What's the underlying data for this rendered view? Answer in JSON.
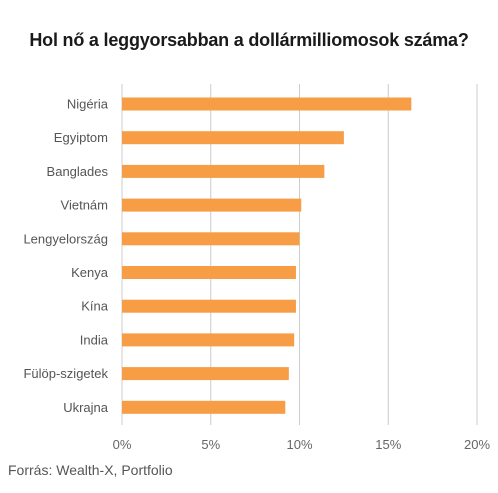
{
  "title": "Hol nő a leggyorsabban a dollármilliomosok száma?",
  "source": "Forrás: Wealth-X, Portfolio",
  "colors": {
    "bar": "#f79d46",
    "grid": "#cccccc",
    "axis_text": "#666666"
  },
  "chart_data": {
    "type": "bar",
    "orientation": "horizontal",
    "title": "Hol nő a leggyorsabban a dollármilliomosok száma?",
    "categories": [
      "Nigéria",
      "Egyiptom",
      "Banglades",
      "Vietnám",
      "Lengyelország",
      "Kenya",
      "Kína",
      "India",
      "Fülöp-szigetek",
      "Ukrajna"
    ],
    "values": [
      16.3,
      12.5,
      11.4,
      10.1,
      10.0,
      9.8,
      9.8,
      9.7,
      9.4,
      9.2
    ],
    "xlim": [
      0,
      20
    ],
    "xticks": [
      0,
      5,
      10,
      15,
      20
    ],
    "xtick_labels": [
      "0%",
      "5%",
      "10%",
      "15%",
      "20%"
    ],
    "grid": true,
    "legend": "none"
  }
}
